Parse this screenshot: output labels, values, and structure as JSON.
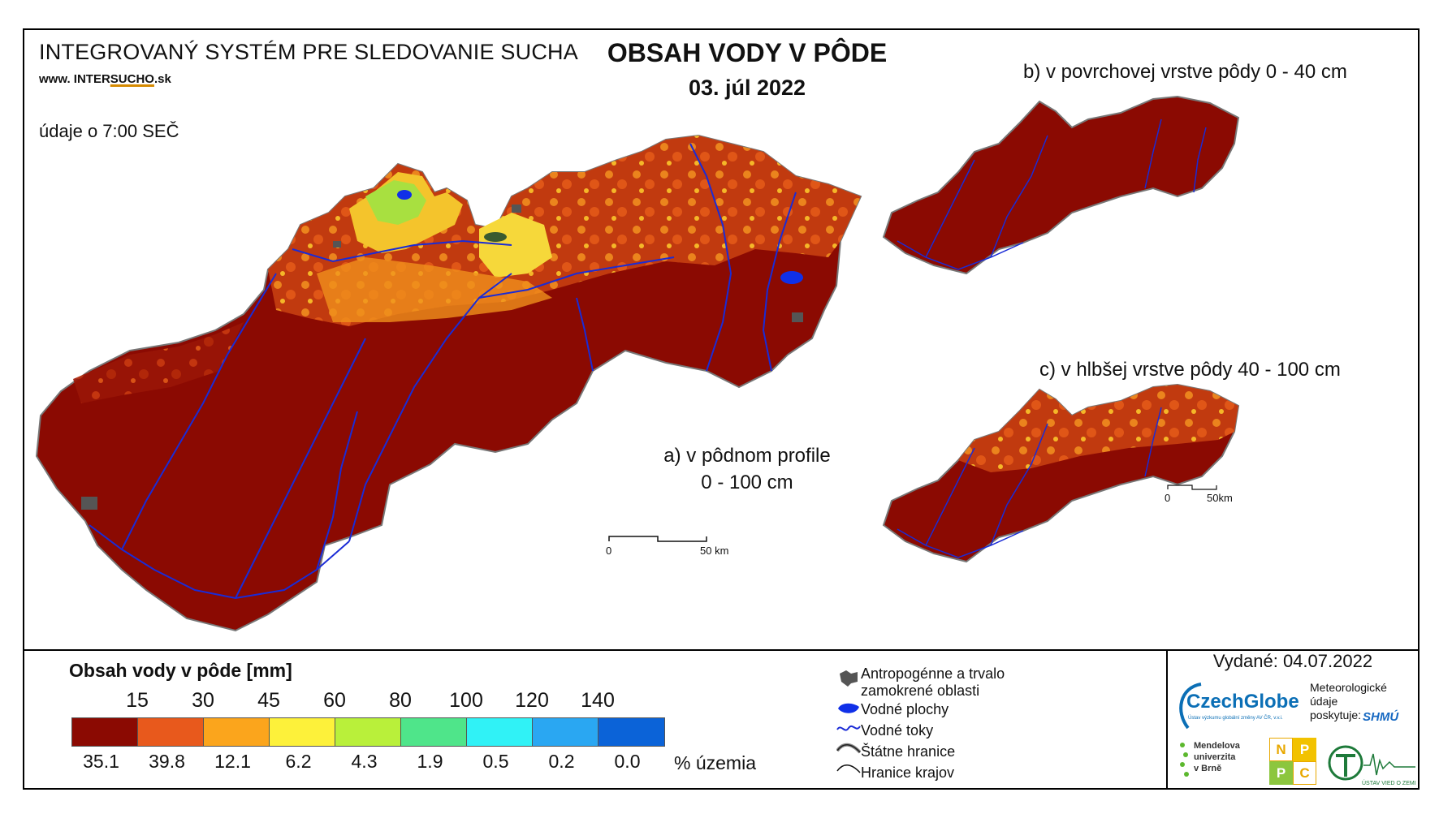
{
  "header": {
    "system_title": "INTEGROVANÝ SYSTÉM PRE SLEDOVANIE SUCHA",
    "website_prefix": "www. INTER",
    "website_highlight": "SUCHO",
    "website_suffix": ".sk",
    "time_note": "údaje o 7:00 SEČ",
    "main_title": "OBSAH VODY V PÔDE",
    "date": "03. júl 2022"
  },
  "panels": {
    "a_line1": "a) v pôdnom profile",
    "a_line2": "0 - 100 cm",
    "b_label": "b) v povrchovej vrstve pôdy 0 - 40 cm",
    "c_label": "c) v hlbšej vrstve pôdy 40 - 100 cm"
  },
  "scale_bars": {
    "main_zero": "0",
    "main_end": "50 km",
    "small_zero": "0",
    "small_end": "50km"
  },
  "legend": {
    "title": "Obsah vody v pôde  [mm]",
    "thresholds": [
      "15",
      "30",
      "45",
      "60",
      "80",
      "100",
      "120",
      "140"
    ],
    "colors": [
      "#8b0a02",
      "#e8591c",
      "#fba51c",
      "#fdf13a",
      "#b9f03a",
      "#4fe58a",
      "#30f2f6",
      "#2aa7f2",
      "#0b63d8"
    ],
    "percentages": [
      "35.1",
      "39.8",
      "12.1",
      "6.2",
      "4.3",
      "1.9",
      "0.5",
      "0.2",
      "0.0"
    ],
    "percent_unit": "% územia"
  },
  "map_key": {
    "anthropogenic_line1": "Antropogénne a trvalo",
    "anthropogenic_line2": "zamokrené oblasti",
    "water_bodies": "Vodné plochy",
    "water_streams": "Vodné toky",
    "state_border": "Štátne hranice",
    "region_border": "Hranice krajov"
  },
  "footer": {
    "issued": "Vydané: 04.07.2022",
    "czechglobe": "CzechGlobe",
    "czechglobe_sub": "Ústav výzkumu globální změny AV ČR, v.v.i.",
    "meteo_line1": "Meteorologické",
    "meteo_line2": "údaje",
    "meteo_line3": "poskytuje:",
    "shmu": "SHMÚ",
    "mendel_line1": "Mendelova",
    "mendel_line2": "univerzita",
    "mendel_line3": "v Brně",
    "nppc_n": "N",
    "nppc_p1": "P",
    "nppc_p2": "P",
    "nppc_c": "C",
    "uvz": "ÚSTAV VIED O ZEMI"
  },
  "colors": {
    "dark_red": "#8b0a02",
    "river_blue": "#1a2bd6",
    "lake_blue": "#1030e8"
  }
}
